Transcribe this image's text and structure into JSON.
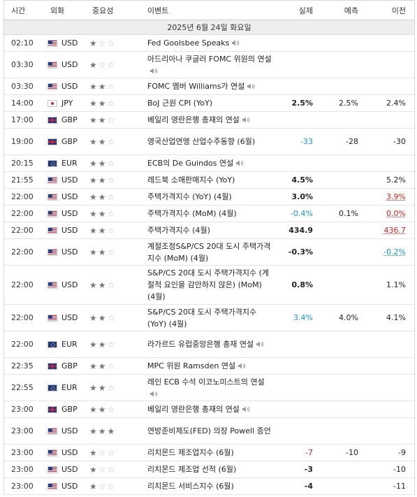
{
  "header": {
    "time": "시간",
    "currency": "외화",
    "importance": "중요성",
    "event": "이벤트",
    "actual": "실제",
    "forecast": "예측",
    "previous": "이전"
  },
  "date_label": "2025년 6월 24일 화요일",
  "icons": {
    "star": "star-icon",
    "speaker": "speaker-icon"
  },
  "colors": {
    "positive_blue": "#1a8fd6",
    "negative_red": "#d42020"
  },
  "events": [
    {
      "time": "02:10",
      "flag": "us",
      "currency": "USD",
      "stars": 1,
      "event": "Fed Goolsbee Speaks",
      "speech": true,
      "actual": "",
      "forecast": "",
      "previous": "",
      "h": 24
    },
    {
      "time": "03:30",
      "flag": "us",
      "currency": "USD",
      "stars": 1,
      "event": "아드리아나 쿠글러 FOMC 위원의 연설",
      "speech": true,
      "actual": "",
      "forecast": "",
      "previous": "",
      "h": 38
    },
    {
      "time": "03:30",
      "flag": "us",
      "currency": "USD",
      "stars": 2,
      "event": "FOMC 멤버 Williams가 연설",
      "speech": true,
      "actual": "",
      "forecast": "",
      "previous": "",
      "h": 24
    },
    {
      "time": "14:00",
      "flag": "jp",
      "currency": "JPY",
      "stars": 2,
      "event": "BoJ 근원 CPI (YoY)",
      "speech": false,
      "actual": "2.5%",
      "actual_style": "bold",
      "forecast": "2.5%",
      "previous": "2.4%",
      "previous_style": "",
      "h": 24
    },
    {
      "time": "17:00",
      "flag": "gb",
      "currency": "GBP",
      "stars": 2,
      "event": "베일리 영란은행 총재의 연설",
      "speech": true,
      "actual": "",
      "forecast": "",
      "previous": "",
      "h": 24
    },
    {
      "time": "19:00",
      "flag": "gb",
      "currency": "GBP",
      "stars": 2,
      "event": "영국산업연맹 산업수주동향 (6월)",
      "speech": false,
      "actual": "-33",
      "actual_style": "blue",
      "forecast": "-28",
      "previous": "-30",
      "previous_style": "",
      "h": 38
    },
    {
      "time": "20:15",
      "flag": "eu",
      "currency": "EUR",
      "stars": 2,
      "event": "ECB의 De Guindos 연설",
      "speech": true,
      "actual": "",
      "forecast": "",
      "previous": "",
      "h": 24
    },
    {
      "time": "21:55",
      "flag": "us",
      "currency": "USD",
      "stars": 2,
      "event": "레드북 소매판매지수 (YoY)",
      "speech": false,
      "actual": "4.5%",
      "actual_style": "bold",
      "forecast": "",
      "previous": "5.2%",
      "previous_style": "",
      "h": 24
    },
    {
      "time": "22:00",
      "flag": "us",
      "currency": "USD",
      "stars": 2,
      "event": "주택가격지수 (YoY) (4월)",
      "speech": false,
      "actual": "3.0%",
      "actual_style": "bold",
      "forecast": "",
      "previous": "3.9%",
      "previous_style": "red",
      "h": 24
    },
    {
      "time": "22:00",
      "flag": "us",
      "currency": "USD",
      "stars": 2,
      "event": "주택가격지수 (MoM) (4월)",
      "speech": false,
      "actual": "-0.4%",
      "actual_style": "blue",
      "forecast": "0.1%",
      "previous": "0.0%",
      "previous_style": "red",
      "h": 24
    },
    {
      "time": "22:00",
      "flag": "us",
      "currency": "USD",
      "stars": 2,
      "event": "주택가격지수 (4월)",
      "speech": false,
      "actual": "434.9",
      "actual_style": "bold",
      "forecast": "",
      "previous": "436.7",
      "previous_style": "red",
      "h": 24
    },
    {
      "time": "22:00",
      "flag": "us",
      "currency": "USD",
      "stars": 2,
      "event": "계절조정S&P/CS 20대 도시 주택가격지수 (MoM) (4월)",
      "speech": false,
      "actual": "-0.3%",
      "actual_style": "bold",
      "forecast": "",
      "previous": "-0.2%",
      "previous_style": "blue",
      "h": 38
    },
    {
      "time": "22:00",
      "flag": "us",
      "currency": "USD",
      "stars": 2,
      "event": "S&P/CS 20대 도시 주택가격지수 (계절적 요인을 감안하지 않은) (MoM) (4월)",
      "speech": false,
      "actual": "0.8%",
      "actual_style": "bold",
      "forecast": "",
      "previous": "1.1%",
      "previous_style": "",
      "h": 56
    },
    {
      "time": "22:00",
      "flag": "us",
      "currency": "USD",
      "stars": 2,
      "event": "S&P/CS 20대 도시 주택가격지수 (YoY) (4월)",
      "speech": false,
      "actual": "3.4%",
      "actual_style": "blue",
      "forecast": "4.0%",
      "previous": "4.1%",
      "previous_style": "",
      "h": 38
    },
    {
      "time": "22:00",
      "flag": "eu",
      "currency": "EUR",
      "stars": 2,
      "event": "라가르드 유럽중앙은행 총재 연설",
      "speech": true,
      "actual": "",
      "forecast": "",
      "previous": "",
      "h": 38
    },
    {
      "time": "22:35",
      "flag": "gb",
      "currency": "GBP",
      "stars": 2,
      "event": "MPC 위원 Ramsden 연설",
      "speech": true,
      "actual": "",
      "forecast": "",
      "previous": "",
      "h": 24
    },
    {
      "time": "22:55",
      "flag": "eu",
      "currency": "EUR",
      "stars": 2,
      "event": "레인 ECB 수석 이코노미스트의 연설",
      "speech": true,
      "actual": "",
      "forecast": "",
      "previous": "",
      "h": 38
    },
    {
      "time": "23:00",
      "flag": "gb",
      "currency": "GBP",
      "stars": 2,
      "event": "베일리 영란은행 총재의 연설",
      "speech": true,
      "actual": "",
      "forecast": "",
      "previous": "",
      "h": 24
    },
    {
      "time": "23:00",
      "flag": "us",
      "currency": "USD",
      "stars": 3,
      "event": "연방준비제도(FED) 의장 Powell 증언",
      "speech": false,
      "actual": "",
      "forecast": "",
      "previous": "",
      "h": 38
    },
    {
      "time": "23:00",
      "flag": "us",
      "currency": "USD",
      "stars": 1,
      "event": "리치몬드 제조업지수 (6월)",
      "speech": false,
      "actual": "-7",
      "actual_style": "red",
      "forecast": "-10",
      "previous": "-9",
      "previous_style": "",
      "h": 24
    },
    {
      "time": "23:00",
      "flag": "us",
      "currency": "USD",
      "stars": 1,
      "event": "리치몬드 제조업 선적 (6월)",
      "speech": false,
      "actual": "-3",
      "actual_style": "bold",
      "forecast": "",
      "previous": "-10",
      "previous_style": "",
      "h": 24
    },
    {
      "time": "23:00",
      "flag": "us",
      "currency": "USD",
      "stars": 1,
      "event": "리치몬드 서비스지수 (6월)",
      "speech": false,
      "actual": "-4",
      "actual_style": "bold",
      "forecast": "",
      "previous": "-11",
      "previous_style": "",
      "h": 24
    }
  ]
}
